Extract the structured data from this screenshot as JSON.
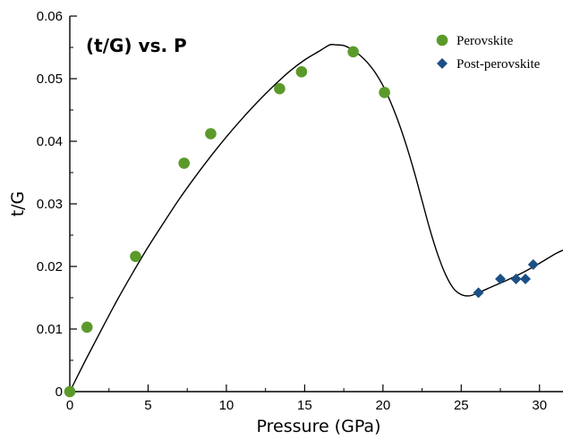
{
  "chart_data": {
    "type": "scatter",
    "title": "(t/G) vs. P",
    "xlabel": "Pressure (GPa)",
    "ylabel": "t/G",
    "xlim": [
      0,
      31.5
    ],
    "ylim": [
      0,
      0.06
    ],
    "xticks": [
      0,
      5,
      10,
      15,
      20,
      25,
      30
    ],
    "xtick_labels": [
      "0",
      "5",
      "10",
      "15",
      "20",
      "25",
      "30"
    ],
    "yticks": [
      0,
      0.01,
      0.02,
      0.03,
      0.04,
      0.05,
      0.06
    ],
    "ytick_labels": [
      "0",
      "0.01",
      "0.02",
      "0.03",
      "0.04",
      "0.05",
      "0.06"
    ],
    "grid": false,
    "legend_position": "top-right",
    "series": [
      {
        "name": "Perovskite",
        "marker": "circle",
        "color": "#5b9a2a",
        "points": [
          {
            "x": 0.0,
            "y": 0.0
          },
          {
            "x": 1.1,
            "y": 0.0103
          },
          {
            "x": 4.2,
            "y": 0.0216
          },
          {
            "x": 7.3,
            "y": 0.0365
          },
          {
            "x": 9.0,
            "y": 0.0412
          },
          {
            "x": 13.4,
            "y": 0.0484
          },
          {
            "x": 14.8,
            "y": 0.0511
          },
          {
            "x": 18.1,
            "y": 0.0543
          },
          {
            "x": 20.1,
            "y": 0.0478
          }
        ]
      },
      {
        "name": "Post-perovskite",
        "marker": "diamond",
        "color": "#1c4f86",
        "points": [
          {
            "x": 26.1,
            "y": 0.0158
          },
          {
            "x": 27.5,
            "y": 0.018
          },
          {
            "x": 28.5,
            "y": 0.018
          },
          {
            "x": 29.1,
            "y": 0.018
          },
          {
            "x": 29.6,
            "y": 0.0203
          }
        ]
      }
    ],
    "fit_curve": {
      "color": "#000000",
      "points": [
        [
          0.0,
          0.0
        ],
        [
          1.0,
          0.005
        ],
        [
          2.0,
          0.0098
        ],
        [
          3.0,
          0.0145
        ],
        [
          4.0,
          0.0189
        ],
        [
          5.0,
          0.0231
        ],
        [
          6.0,
          0.027
        ],
        [
          7.0,
          0.0308
        ],
        [
          8.0,
          0.0343
        ],
        [
          9.0,
          0.0376
        ],
        [
          10.0,
          0.0407
        ],
        [
          11.0,
          0.0436
        ],
        [
          12.0,
          0.0463
        ],
        [
          13.0,
          0.0488
        ],
        [
          14.0,
          0.0511
        ],
        [
          15.0,
          0.053
        ],
        [
          16.0,
          0.0545
        ],
        [
          16.6,
          0.0554
        ],
        [
          17.0,
          0.0554
        ],
        [
          17.5,
          0.0553
        ],
        [
          18.0,
          0.0547
        ],
        [
          18.5,
          0.0538
        ],
        [
          19.0,
          0.0526
        ],
        [
          19.5,
          0.051
        ],
        [
          20.0,
          0.0489
        ],
        [
          20.5,
          0.0462
        ],
        [
          21.0,
          0.043
        ],
        [
          21.5,
          0.0393
        ],
        [
          22.0,
          0.0351
        ],
        [
          22.5,
          0.0305
        ],
        [
          23.0,
          0.0259
        ],
        [
          23.5,
          0.0219
        ],
        [
          24.0,
          0.0187
        ],
        [
          24.5,
          0.0165
        ],
        [
          25.0,
          0.0155
        ],
        [
          25.5,
          0.0153
        ],
        [
          26.0,
          0.0157
        ],
        [
          27.0,
          0.0168
        ],
        [
          28.0,
          0.0179
        ],
        [
          29.0,
          0.0191
        ],
        [
          30.0,
          0.0205
        ],
        [
          31.0,
          0.022
        ],
        [
          31.5,
          0.0226
        ]
      ]
    }
  }
}
